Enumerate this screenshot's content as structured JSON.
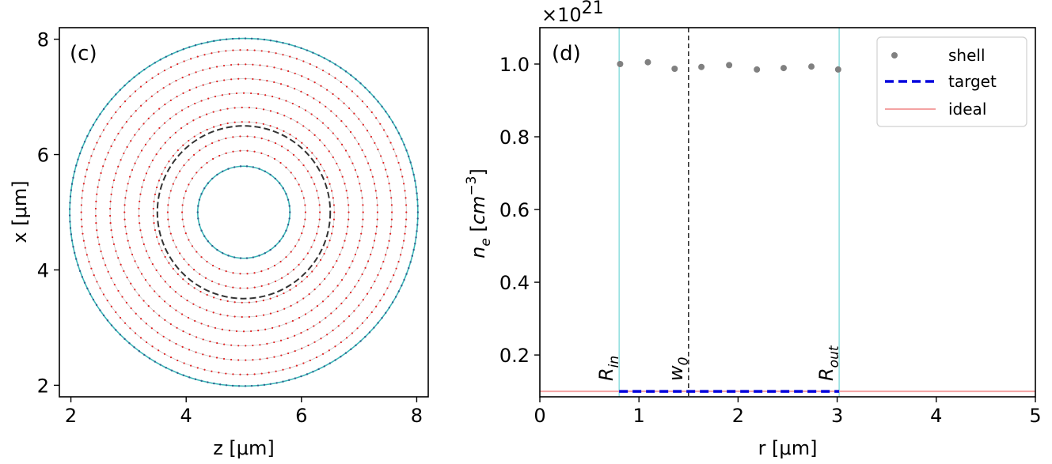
{
  "chart_data": [
    {
      "panel": "(c)",
      "type": "scatter",
      "xlabel": "z [μm]",
      "ylabel": "x [μm]",
      "xlim": [
        1.8,
        8.2
      ],
      "ylim": [
        1.8,
        8.2
      ],
      "xticks": [
        2,
        4,
        6,
        8
      ],
      "yticks": [
        2,
        4,
        6,
        8
      ],
      "center": [
        5.0,
        5.0
      ],
      "inner_radius": 0.8,
      "outer_radius": 3.02,
      "ring_radii": [
        1.07,
        1.32,
        1.57,
        1.82,
        2.07,
        2.32,
        2.57,
        2.82
      ],
      "dashed_radius": 1.5,
      "colors": {
        "boundary": "#3bb7b7",
        "rings": "#e02020",
        "dashed": "#333333",
        "guide": "#cccccc"
      }
    },
    {
      "panel": "(d)",
      "type": "scatter",
      "xlabel": "r [μm]",
      "ylabel": "n_e [cm^-3]",
      "ylabel_base": "n",
      "ylabel_sub": "e",
      "ylabel_unit": "cm",
      "ylabel_sup": "−3",
      "multiplier_base": "×10",
      "multiplier_exp": "21",
      "xlim": [
        0,
        5
      ],
      "ylim": [
        0.085,
        1.1
      ],
      "xticks": [
        0,
        1,
        2,
        3,
        4,
        5
      ],
      "yticks": [
        0.2,
        0.4,
        0.6,
        0.8,
        1.0
      ],
      "ytick_labels": [
        "0.2",
        "0.4",
        "0.6",
        "0.8",
        "1.0"
      ],
      "series": [
        {
          "name": "shell",
          "kind": "points",
          "color": "#808080",
          "x": [
            0.81,
            1.09,
            1.36,
            1.63,
            1.91,
            2.19,
            2.46,
            2.74,
            3.01
          ],
          "y": [
            1.0,
            1.005,
            0.987,
            0.992,
            0.997,
            0.985,
            0.989,
            0.993,
            0.985
          ]
        },
        {
          "name": "target",
          "kind": "dashed-line",
          "color": "#0000dd",
          "x": [
            0.8,
            3.02
          ],
          "y": [
            0.1,
            0.1
          ]
        },
        {
          "name": "ideal",
          "kind": "line",
          "color": "#f4a3a3",
          "x": [
            0,
            5
          ],
          "y": [
            0.1,
            0.1
          ]
        }
      ],
      "vlines": [
        {
          "name": "R_in",
          "base": "R",
          "sub": "in",
          "x": 0.8,
          "color": "#7dd8d8",
          "style": "solid"
        },
        {
          "name": "w_0",
          "base": "w",
          "sub": "0",
          "x": 1.5,
          "color": "#333333",
          "style": "dashed"
        },
        {
          "name": "R_out",
          "base": "R",
          "sub": "out",
          "x": 3.02,
          "color": "#7dd8d8",
          "style": "solid"
        }
      ],
      "legend": [
        "shell",
        "target",
        "ideal"
      ],
      "legend_loc": "top-right"
    }
  ]
}
